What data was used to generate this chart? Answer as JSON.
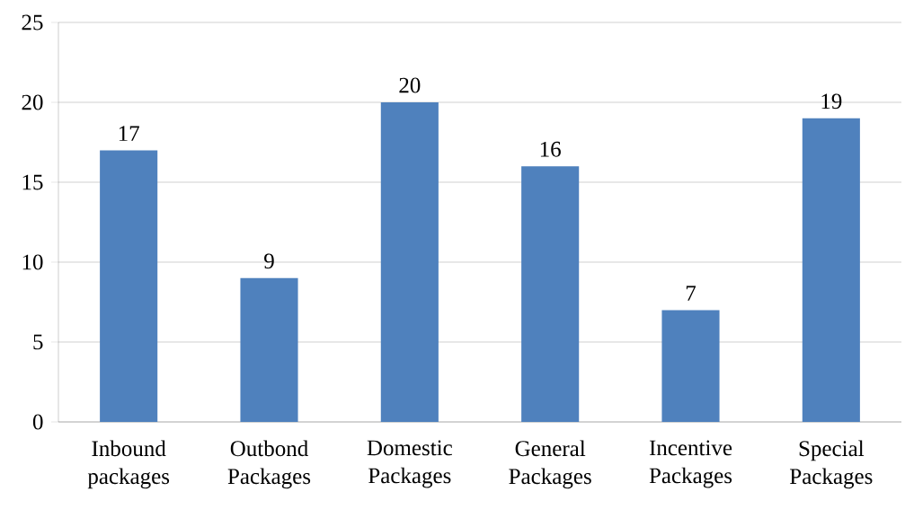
{
  "chart_data": {
    "type": "bar",
    "categories": [
      "Inbound packages",
      "Outbond Packages",
      "Domestic Packages",
      "General Packages",
      "Incentive Packages",
      "Special Packages"
    ],
    "values": [
      17,
      9,
      20,
      16,
      7,
      19
    ],
    "color": "#4f81bd",
    "ylim": [
      0,
      25
    ],
    "yticks": [
      0,
      5,
      10,
      15,
      20,
      25
    ],
    "grid": "y",
    "data_labels": true
  }
}
